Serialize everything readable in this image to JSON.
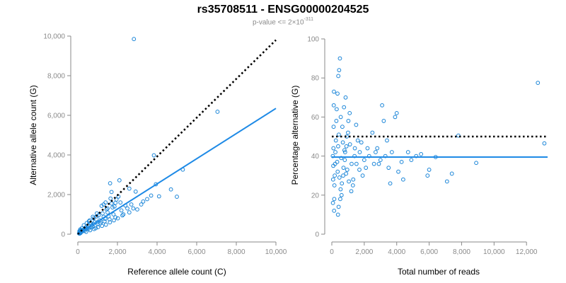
{
  "figure": {
    "title": "rs35708511 - ENSG00000204525",
    "subtitle_prefix": "p-value <= 2",
    "subtitle_times": "×",
    "subtitle_base": "10",
    "subtitle_exponent": "-311"
  },
  "colors": {
    "points": "#1a85d8",
    "fit_line": "#1e8ae6",
    "reference_line": "#000000",
    "axis": "#8a8a8a",
    "text": "#000000"
  },
  "chart_data": [
    {
      "type": "scatter",
      "xlabel": "Reference allele count (C)",
      "ylabel": "Alternative allele count (G)",
      "xlim": [
        0,
        10000
      ],
      "ylim": [
        0,
        10000
      ],
      "xticks": [
        0,
        2000,
        4000,
        6000,
        8000,
        10000
      ],
      "xtick_labels": [
        "0",
        "2,000",
        "4,000",
        "6,000",
        "8,000",
        "10,000"
      ],
      "yticks": [
        0,
        2000,
        4000,
        6000,
        8000,
        10000
      ],
      "ytick_labels": [
        "0",
        "2,000",
        "4,000",
        "6,000",
        "8,000",
        "10,000"
      ],
      "grid": false,
      "points": [
        [
          2830,
          9850
        ],
        [
          7050,
          6180
        ],
        [
          3840,
          3980
        ],
        [
          5300,
          3260
        ],
        [
          4700,
          2260
        ],
        [
          5000,
          1890
        ],
        [
          3940,
          2520
        ],
        [
          4100,
          1910
        ],
        [
          2100,
          2720
        ],
        [
          2920,
          2150
        ],
        [
          3500,
          1770
        ],
        [
          1630,
          2570
        ],
        [
          1700,
          2130
        ],
        [
          2050,
          1900
        ],
        [
          1900,
          1580
        ],
        [
          1650,
          1800
        ],
        [
          1400,
          1600
        ],
        [
          1200,
          1430
        ],
        [
          2400,
          1450
        ],
        [
          2700,
          1500
        ],
        [
          3000,
          1250
        ],
        [
          2600,
          1100
        ],
        [
          2250,
          950
        ],
        [
          1800,
          1000
        ],
        [
          1500,
          1100
        ],
        [
          1300,
          880
        ],
        [
          1100,
          700
        ],
        [
          950,
          900
        ],
        [
          1000,
          500
        ],
        [
          850,
          600
        ],
        [
          700,
          450
        ],
        [
          600,
          700
        ],
        [
          500,
          350
        ],
        [
          450,
          560
        ],
        [
          400,
          250
        ],
        [
          300,
          450
        ],
        [
          250,
          150
        ],
        [
          200,
          300
        ],
        [
          150,
          100
        ],
        [
          120,
          240
        ],
        [
          100,
          80
        ],
        [
          80,
          150
        ],
        [
          60,
          40
        ],
        [
          350,
          180
        ],
        [
          550,
          280
        ],
        [
          750,
          380
        ],
        [
          900,
          300
        ],
        [
          1150,
          550
        ],
        [
          1350,
          650
        ],
        [
          1600,
          750
        ],
        [
          1900,
          850
        ],
        [
          2200,
          1200
        ],
        [
          2500,
          1300
        ],
        [
          1750,
          1350
        ],
        [
          1450,
          1250
        ],
        [
          1250,
          1050
        ],
        [
          1050,
          950
        ],
        [
          800,
          800
        ],
        [
          650,
          550
        ],
        [
          520,
          450
        ],
        [
          380,
          330
        ],
        [
          280,
          220
        ],
        [
          180,
          140
        ],
        [
          140,
          60
        ],
        [
          90,
          30
        ],
        [
          420,
          120
        ],
        [
          620,
          200
        ],
        [
          820,
          260
        ],
        [
          1020,
          360
        ],
        [
          1220,
          420
        ],
        [
          1420,
          480
        ],
        [
          1620,
          600
        ],
        [
          1820,
          700
        ],
        [
          2020,
          800
        ],
        [
          2300,
          1000
        ],
        [
          2800,
          1300
        ],
        [
          3200,
          1500
        ],
        [
          3700,
          1950
        ],
        [
          3300,
          1650
        ],
        [
          1550,
          900
        ],
        [
          1380,
          780
        ],
        [
          1180,
          640
        ],
        [
          980,
          600
        ],
        [
          780,
          520
        ],
        [
          680,
          380
        ],
        [
          480,
          300
        ],
        [
          330,
          260
        ],
        [
          230,
          190
        ],
        [
          160,
          210
        ],
        [
          110,
          170
        ],
        [
          2150,
          1600
        ],
        [
          1950,
          1750
        ],
        [
          2600,
          2300
        ],
        [
          1850,
          1400
        ],
        [
          1500,
          1300
        ],
        [
          960,
          1050
        ],
        [
          760,
          880
        ],
        [
          560,
          650
        ],
        [
          1300,
          1500
        ],
        [
          1700,
          1550
        ]
      ],
      "fit_line": [
        [
          0,
          0
        ],
        [
          10000,
          6350
        ]
      ],
      "reference_line": [
        [
          0,
          0
        ],
        [
          10000,
          9800
        ]
      ]
    },
    {
      "type": "scatter",
      "xlabel": "Total number of reads",
      "ylabel": "Percentage alternative (G)",
      "xlim": [
        0,
        13300
      ],
      "ylim": [
        0,
        100
      ],
      "xticks": [
        0,
        2000,
        4000,
        6000,
        8000,
        10000,
        12000
      ],
      "xtick_labels": [
        "0",
        "2,000",
        "4,000",
        "6,000",
        "8,000",
        "10,000",
        "12,000"
      ],
      "yticks": [
        0,
        20,
        40,
        60,
        80,
        100
      ],
      "ytick_labels": [
        "0",
        "20",
        "40",
        "60",
        "80",
        "100"
      ],
      "grid": false,
      "points": [
        [
          12700,
          77.5
        ],
        [
          13100,
          46.5
        ],
        [
          7800,
          50.5
        ],
        [
          8900,
          36.5
        ],
        [
          7400,
          31
        ],
        [
          7100,
          27
        ],
        [
          6400,
          39.5
        ],
        [
          6000,
          33
        ],
        [
          5900,
          30
        ],
        [
          4900,
          38
        ],
        [
          4700,
          42
        ],
        [
          4000,
          62
        ],
        [
          3900,
          60
        ],
        [
          4100,
          32
        ],
        [
          4400,
          28
        ],
        [
          3600,
          26
        ],
        [
          3400,
          48
        ],
        [
          3200,
          58
        ],
        [
          3100,
          66
        ],
        [
          2900,
          36
        ],
        [
          2700,
          42
        ],
        [
          2500,
          52
        ],
        [
          2200,
          44
        ],
        [
          2000,
          38
        ],
        [
          1900,
          30
        ],
        [
          1700,
          33
        ],
        [
          1600,
          48
        ],
        [
          1500,
          56
        ],
        [
          1400,
          40
        ],
        [
          1300,
          25
        ],
        [
          1200,
          22
        ],
        [
          1100,
          62
        ],
        [
          1000,
          52
        ],
        [
          900,
          45
        ],
        [
          800,
          38
        ],
        [
          700,
          30
        ],
        [
          600,
          20
        ],
        [
          500,
          90
        ],
        [
          450,
          84
        ],
        [
          400,
          81
        ],
        [
          350,
          72
        ],
        [
          300,
          64
        ],
        [
          280,
          58
        ],
        [
          250,
          48
        ],
        [
          220,
          42
        ],
        [
          200,
          36
        ],
        [
          180,
          30
        ],
        [
          160,
          25
        ],
        [
          150,
          18
        ],
        [
          140,
          12
        ],
        [
          130,
          73
        ],
        [
          120,
          66
        ],
        [
          110,
          55
        ],
        [
          100,
          44
        ],
        [
          90,
          35
        ],
        [
          80,
          28
        ],
        [
          70,
          16
        ],
        [
          60,
          40
        ],
        [
          380,
          10
        ],
        [
          420,
          14
        ],
        [
          520,
          18
        ],
        [
          620,
          26
        ],
        [
          720,
          34
        ],
        [
          820,
          42
        ],
        [
          920,
          50
        ],
        [
          1020,
          58
        ],
        [
          1120,
          46
        ],
        [
          1220,
          36
        ],
        [
          1320,
          28
        ],
        [
          1420,
          44
        ],
        [
          1520,
          36
        ],
        [
          1720,
          42
        ],
        [
          1820,
          47
        ],
        [
          2100,
          34
        ],
        [
          2300,
          40
        ],
        [
          2600,
          36
        ],
        [
          2800,
          44
        ],
        [
          3000,
          38
        ],
        [
          3300,
          40
        ],
        [
          3500,
          34
        ],
        [
          3700,
          42
        ],
        [
          4300,
          37
        ],
        [
          5200,
          40
        ],
        [
          5500,
          41
        ],
        [
          550,
          60
        ],
        [
          650,
          55
        ],
        [
          750,
          65
        ],
        [
          850,
          70
        ],
        [
          950,
          33
        ],
        [
          1050,
          27
        ],
        [
          330,
          37
        ],
        [
          360,
          32
        ],
        [
          390,
          45
        ],
        [
          430,
          51
        ],
        [
          470,
          29
        ],
        [
          540,
          23
        ],
        [
          580,
          39
        ],
        [
          680,
          47
        ],
        [
          780,
          43
        ],
        [
          880,
          31
        ]
      ],
      "fit_line": [
        [
          0,
          39.5
        ],
        [
          13300,
          39.5
        ]
      ],
      "reference_line": [
        [
          0,
          50
        ],
        [
          13300,
          50
        ]
      ]
    }
  ]
}
